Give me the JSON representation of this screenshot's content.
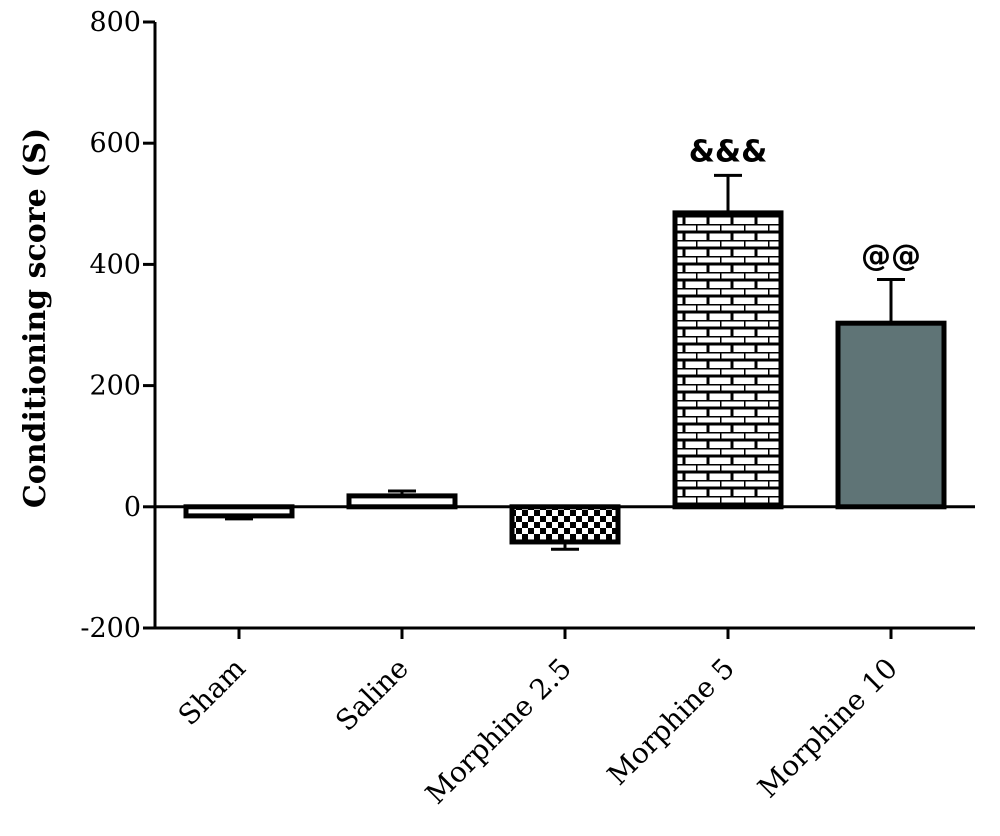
{
  "chart_data": {
    "type": "bar",
    "ylabel": "Conditioning score (S)",
    "xlabel": "",
    "ylim": [
      -200,
      800
    ],
    "yticks": [
      -200,
      0,
      200,
      400,
      600,
      800
    ],
    "yticklabels": [
      "-200",
      "0",
      "200",
      "400",
      "600",
      "800"
    ],
    "categories": [
      "Sham",
      "Saline",
      "Morphine 2.5",
      "Morphine 5",
      "Morphine 10"
    ],
    "values": [
      -15,
      18,
      -58,
      485,
      303
    ],
    "errors": [
      5,
      8,
      12,
      62,
      72
    ],
    "annotations": [
      "",
      "",
      "",
      "&&&",
      "@@"
    ],
    "patterns": [
      "plain",
      "plain",
      "checker",
      "brick",
      "solid"
    ],
    "colors": {
      "bar_fill": "#ffffff",
      "solid_fill": "#5f7476",
      "outline": "#000000"
    },
    "grid": false,
    "legend": "none"
  }
}
